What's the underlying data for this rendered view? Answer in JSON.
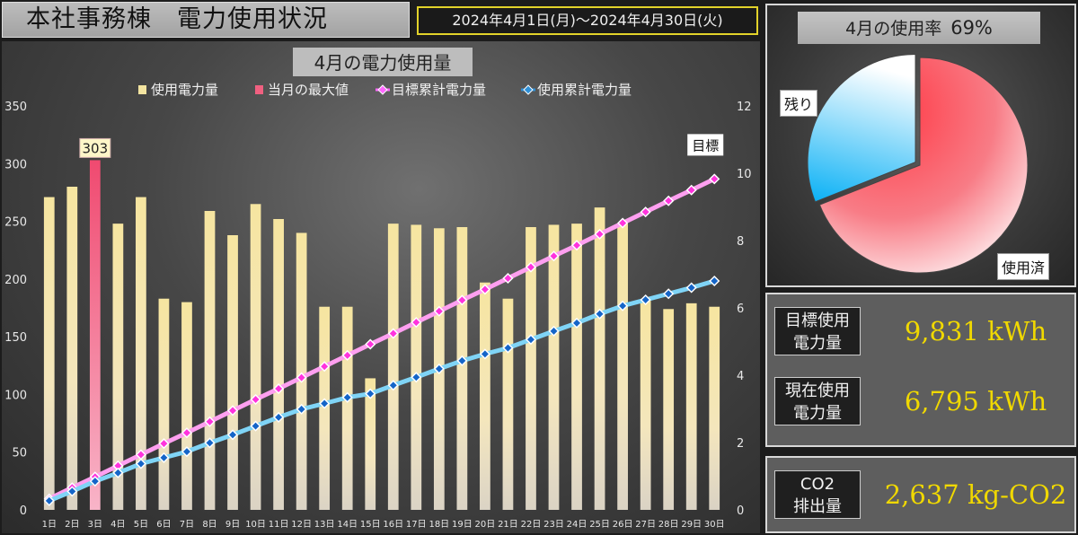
{
  "header": {
    "title": "本社事務棟　電力使用状況",
    "period": "2024年4月1日(月)～2024年4月30日(火)"
  },
  "chart_data": {
    "type": "bar",
    "title": "4月の電力使用量",
    "categories": [
      "1日",
      "2日",
      "3日",
      "4日",
      "5日",
      "6日",
      "7日",
      "8日",
      "9日",
      "10日",
      "11日",
      "12日",
      "13日",
      "14日",
      "15日",
      "16日",
      "17日",
      "18日",
      "19日",
      "20日",
      "21日",
      "22日",
      "23日",
      "24日",
      "25日",
      "26日",
      "27日",
      "28日",
      "29日",
      "30日"
    ],
    "series": [
      {
        "name": "使用電力量",
        "type": "bar",
        "axis": "left",
        "color": "#f3e4a0",
        "values": [
          271,
          280,
          303,
          248,
          271,
          183,
          180,
          259,
          238,
          265,
          252,
          240,
          176,
          176,
          114,
          248,
          247,
          244,
          245,
          197,
          183,
          245,
          247,
          248,
          262,
          248,
          182,
          174,
          179,
          176
        ]
      },
      {
        "name": "当月の最大値",
        "type": "bar",
        "axis": "left",
        "color": "#f06080",
        "values": [
          null,
          null,
          303,
          null,
          null,
          null,
          null,
          null,
          null,
          null,
          null,
          null,
          null,
          null,
          null,
          null,
          null,
          null,
          null,
          null,
          null,
          null,
          null,
          null,
          null,
          null,
          null,
          null,
          null,
          null
        ]
      },
      {
        "name": "目標累計電力量",
        "type": "line",
        "axis": "right",
        "color": "#ff66ff",
        "values": [
          0.33,
          0.66,
          0.98,
          1.31,
          1.64,
          1.97,
          2.29,
          2.62,
          2.95,
          3.28,
          3.6,
          3.93,
          4.26,
          4.59,
          4.92,
          5.24,
          5.57,
          5.9,
          6.23,
          6.55,
          6.88,
          7.21,
          7.54,
          7.86,
          8.19,
          8.52,
          8.85,
          9.18,
          9.5,
          9.83
        ]
      },
      {
        "name": "使用累計電力量",
        "type": "line",
        "axis": "right",
        "color": "#2e8fd6",
        "values": [
          0.27,
          0.55,
          0.85,
          1.1,
          1.37,
          1.55,
          1.73,
          1.99,
          2.23,
          2.49,
          2.75,
          2.99,
          3.16,
          3.34,
          3.45,
          3.7,
          3.94,
          4.19,
          4.43,
          4.63,
          4.81,
          5.06,
          5.31,
          5.55,
          5.82,
          6.06,
          6.24,
          6.42,
          6.6,
          6.8
        ]
      }
    ],
    "y_left": {
      "min": 0,
      "max": 350,
      "ticks": [
        "0",
        "50",
        "100",
        "150",
        "200",
        "250",
        "300",
        "350"
      ]
    },
    "y_right": {
      "min": 0,
      "max": 12,
      "ticks": [
        "0",
        "2",
        "4",
        "6",
        "8",
        "10",
        "12"
      ]
    },
    "max_label": "303",
    "target_label": "目標",
    "legend_position": "top"
  },
  "pie": {
    "title": "4月の使用率",
    "percent": "69%",
    "used_fraction": 0.69,
    "used_label": "使用済",
    "remaining_label": "残り",
    "used_color": "#f0505a",
    "remaining_color": "#1aa8e8"
  },
  "stats": {
    "target": {
      "label": "目標使用\n電力量",
      "value": "9,831 kWh"
    },
    "current": {
      "label": "現在使用\n電力量",
      "value": "6,795 kWh"
    },
    "co2": {
      "label": "CO2\n排出量",
      "value": "2,637 kg-CO2"
    }
  }
}
